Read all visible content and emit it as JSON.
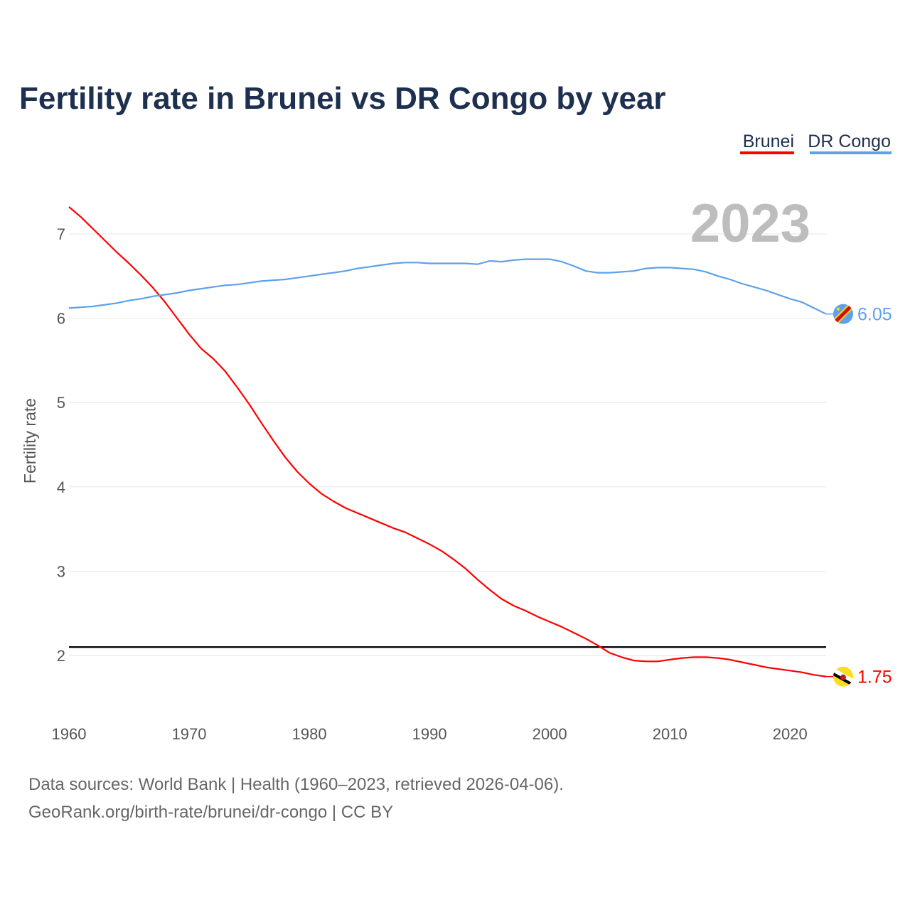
{
  "chart_data": {
    "type": "line",
    "title": "Fertility rate in Brunei vs DR Congo by year",
    "xlabel": "",
    "ylabel": "Fertility rate",
    "xlim": [
      1960,
      2023
    ],
    "ylim": [
      1.5,
      7.3
    ],
    "x_ticks": [
      "1960",
      "1970",
      "1980",
      "1990",
      "2000",
      "2010",
      "2020"
    ],
    "y_ticks": [
      "2",
      "3",
      "4",
      "5",
      "6",
      "7"
    ],
    "grid": true,
    "legend_position": "top-right",
    "year_label": "2023",
    "reference_line": {
      "value": 2.1,
      "color": "#000000"
    },
    "x": [
      1960,
      1961,
      1962,
      1963,
      1964,
      1965,
      1966,
      1967,
      1968,
      1969,
      1970,
      1971,
      1972,
      1973,
      1974,
      1975,
      1976,
      1977,
      1978,
      1979,
      1980,
      1981,
      1982,
      1983,
      1984,
      1985,
      1986,
      1987,
      1988,
      1989,
      1990,
      1991,
      1992,
      1993,
      1994,
      1995,
      1996,
      1997,
      1998,
      1999,
      2000,
      2001,
      2002,
      2003,
      2004,
      2005,
      2006,
      2007,
      2008,
      2009,
      2010,
      2011,
      2012,
      2013,
      2014,
      2015,
      2016,
      2017,
      2018,
      2019,
      2020,
      2021,
      2022,
      2023
    ],
    "series": [
      {
        "name": "Brunei",
        "color": "#ff0000",
        "end_label": "1.75",
        "values": [
          7.32,
          7.2,
          7.06,
          6.92,
          6.78,
          6.65,
          6.51,
          6.36,
          6.19,
          6.0,
          5.81,
          5.64,
          5.52,
          5.37,
          5.18,
          4.98,
          4.76,
          4.55,
          4.35,
          4.18,
          4.04,
          3.92,
          3.83,
          3.75,
          3.69,
          3.63,
          3.57,
          3.51,
          3.46,
          3.39,
          3.32,
          3.24,
          3.14,
          3.03,
          2.9,
          2.78,
          2.67,
          2.59,
          2.53,
          2.46,
          2.4,
          2.34,
          2.27,
          2.2,
          2.12,
          2.03,
          1.98,
          1.94,
          1.93,
          1.93,
          1.95,
          1.97,
          1.98,
          1.98,
          1.97,
          1.95,
          1.92,
          1.89,
          1.86,
          1.84,
          1.82,
          1.8,
          1.77,
          1.75
        ]
      },
      {
        "name": "DR Congo",
        "color": "#5ea1e8",
        "end_label": "6.05",
        "values": [
          6.12,
          6.13,
          6.14,
          6.16,
          6.18,
          6.21,
          6.23,
          6.26,
          6.28,
          6.3,
          6.33,
          6.35,
          6.37,
          6.39,
          6.4,
          6.42,
          6.44,
          6.45,
          6.46,
          6.48,
          6.5,
          6.52,
          6.54,
          6.56,
          6.59,
          6.61,
          6.63,
          6.65,
          6.66,
          6.66,
          6.65,
          6.65,
          6.65,
          6.65,
          6.64,
          6.68,
          6.67,
          6.69,
          6.7,
          6.7,
          6.7,
          6.67,
          6.62,
          6.56,
          6.54,
          6.54,
          6.55,
          6.56,
          6.59,
          6.6,
          6.6,
          6.59,
          6.58,
          6.55,
          6.5,
          6.46,
          6.41,
          6.37,
          6.33,
          6.28,
          6.23,
          6.19,
          6.12,
          6.05
        ]
      }
    ]
  },
  "footer": {
    "line1": "Data sources: World Bank | Health (1960–2023, retrieved 2026-04-06).",
    "line2": "GeoRank.org/birth-rate/brunei/dr-congo | CC BY"
  }
}
